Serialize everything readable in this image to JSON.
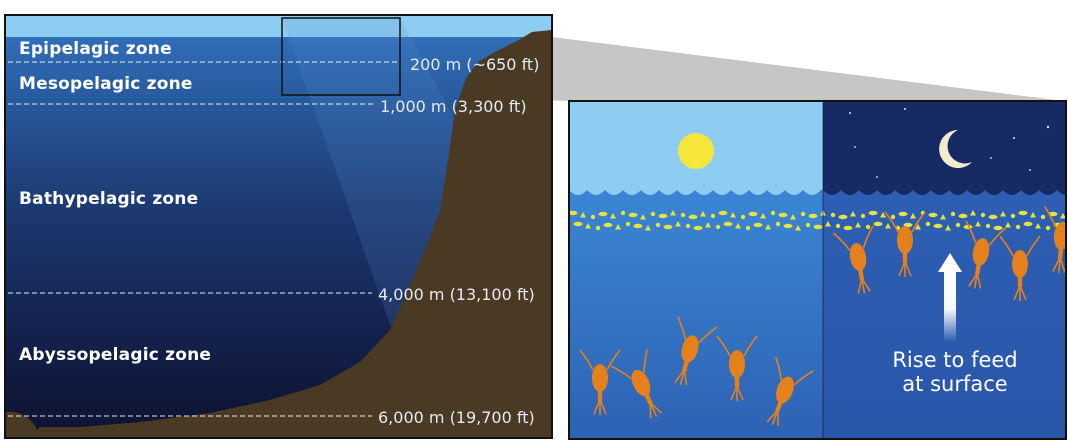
{
  "zones": [
    {
      "name": "Epipelagic zone"
    },
    {
      "name": "Mesopelagic zone"
    },
    {
      "name": "Bathypelagic zone"
    },
    {
      "name": "Abyssopelagic zone"
    }
  ],
  "depths": [
    {
      "label": "200 m (~650 ft)"
    },
    {
      "label": "1,000 m (3,300 ft)"
    },
    {
      "label": "4,000 m (13,100 ft)"
    },
    {
      "label": "6,000 m (19,700 ft)"
    }
  ],
  "inset": {
    "day_icon": "sun-icon",
    "night_icon": "moon-icon",
    "arrow_icon": "up-arrow-icon",
    "caption_line1": "Rise to feed",
    "caption_line2": "at surface"
  },
  "colors": {
    "sky": "#8ecdf2",
    "deep": "#0d1230",
    "rock": "#4a3a24",
    "zooplankton": "#e5811a",
    "phytoplankton": "#e6e23c",
    "sun": "#f6e63a",
    "moon": "#f2eccd",
    "night_sky": "#162b63"
  }
}
